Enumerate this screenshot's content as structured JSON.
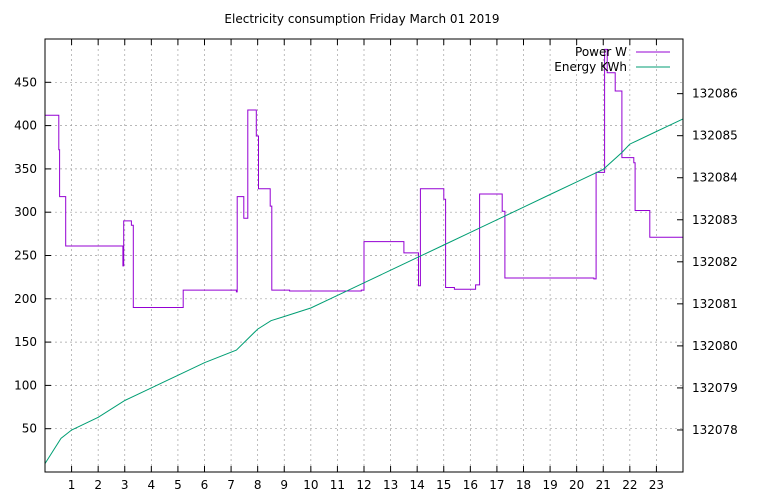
{
  "chart_data": {
    "type": "line",
    "title": "Electricity consumption Friday March 01 2019",
    "xlim": [
      0,
      24
    ],
    "x_ticks": [
      1,
      2,
      3,
      4,
      5,
      6,
      7,
      8,
      9,
      10,
      11,
      12,
      13,
      14,
      15,
      16,
      17,
      18,
      19,
      20,
      21,
      22,
      23
    ],
    "ylim": [
      0,
      500
    ],
    "y_ticks": [
      50,
      100,
      150,
      200,
      250,
      300,
      350,
      400,
      450
    ],
    "y2lim": [
      132077,
      132087.3
    ],
    "y2_ticks": [
      132078,
      132079,
      132080,
      132081,
      132082,
      132083,
      132084,
      132085,
      132086
    ],
    "grid": true,
    "legend": "top-right",
    "series": [
      {
        "name": "Power W",
        "axis": "left",
        "color": "#9400d3",
        "step": true,
        "x": [
          0,
          0.52,
          0.55,
          0.6,
          0.78,
          2.93,
          2.96,
          3.05,
          3.25,
          3.32,
          5.2,
          7.2,
          7.23,
          7.48,
          7.63,
          7.95,
          8.03,
          8.47,
          8.53,
          9.2,
          11.4,
          11.9,
          12.0,
          13.5,
          14.05,
          14.12,
          15.0,
          15.07,
          15.4,
          16.2,
          16.35,
          17.2,
          17.3,
          20.65,
          20.73,
          21.05,
          21.15,
          21.45,
          21.7,
          21.75,
          22.15,
          22.2,
          22.75,
          23.95
        ],
        "y": [
          412,
          372,
          318,
          318,
          261,
          238,
          290,
          290,
          285,
          190,
          210,
          208,
          318,
          293,
          418,
          388,
          327,
          307,
          210,
          209,
          209,
          210,
          266,
          253,
          215,
          327,
          315,
          213,
          211,
          216,
          321,
          301,
          224,
          223,
          346,
          488,
          461,
          440,
          363,
          363,
          357,
          302,
          271,
          271
        ]
      },
      {
        "name": "Energy KWh",
        "axis": "right",
        "color": "#009e73",
        "step": false,
        "x": [
          0,
          0.6,
          1,
          2,
          3,
          4,
          5,
          6,
          7.2,
          8,
          8.5,
          9,
          10,
          11,
          12,
          13,
          14,
          15,
          16,
          17,
          18,
          19,
          20,
          21,
          21.7,
          22,
          23,
          24
        ],
        "y": [
          132077.2,
          132077.8,
          132078.0,
          132078.3,
          132078.7,
          132079.0,
          132079.3,
          132079.6,
          132079.9,
          132080.4,
          132080.6,
          132080.7,
          132080.9,
          132081.2,
          132081.5,
          132081.8,
          132082.1,
          132082.4,
          132082.7,
          132083.0,
          132083.3,
          132083.6,
          132083.9,
          132084.2,
          132084.6,
          132084.8,
          132085.1,
          132085.4
        ]
      }
    ]
  }
}
